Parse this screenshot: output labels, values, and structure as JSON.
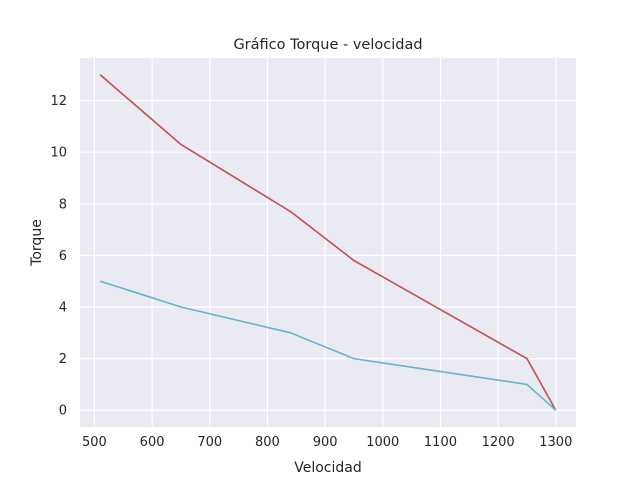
{
  "chart_data": {
    "type": "line",
    "title": "Gráfico Torque - velocidad",
    "xlabel": "Velocidad",
    "ylabel": "Torque",
    "xlim": [
      475,
      1335
    ],
    "ylim": [
      -0.65,
      13.65
    ],
    "xticks": [
      500,
      600,
      700,
      800,
      900,
      1000,
      1100,
      1200,
      1300
    ],
    "yticks": [
      0,
      2,
      4,
      6,
      8,
      10,
      12
    ],
    "grid": true,
    "legend": "none",
    "background": "#eaeaf2",
    "series": [
      {
        "color": "#c44e52",
        "x": [
          510,
          650,
          840,
          950,
          1250,
          1300
        ],
        "y": [
          13,
          10.3,
          7.7,
          5.8,
          2,
          0
        ]
      },
      {
        "color": "#64b5cd",
        "x": [
          510,
          650,
          840,
          950,
          1250,
          1300
        ],
        "y": [
          5,
          4,
          3,
          2,
          1,
          0
        ]
      }
    ]
  }
}
